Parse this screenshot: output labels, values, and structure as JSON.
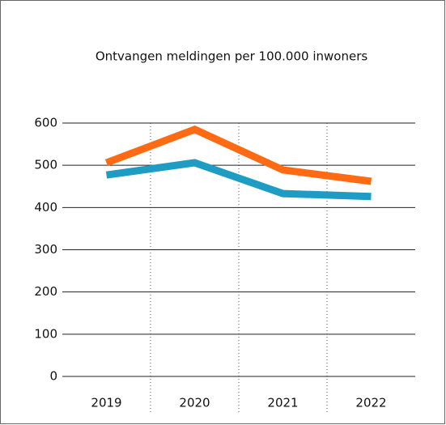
{
  "chart_data": {
    "type": "line",
    "title": "Ontvangen meldingen per 100.000 inwoners",
    "categories": [
      "2019",
      "2020",
      "2021",
      "2022"
    ],
    "series": [
      {
        "color": "#ff6a13",
        "values": [
          506,
          585,
          489,
          462
        ]
      },
      {
        "color": "#1e9cc4",
        "values": [
          477,
          506,
          433,
          426
        ]
      }
    ],
    "ylim": [
      0,
      600
    ],
    "yticks": [
      0,
      100,
      200,
      300,
      400,
      500,
      600
    ],
    "grid": true
  }
}
